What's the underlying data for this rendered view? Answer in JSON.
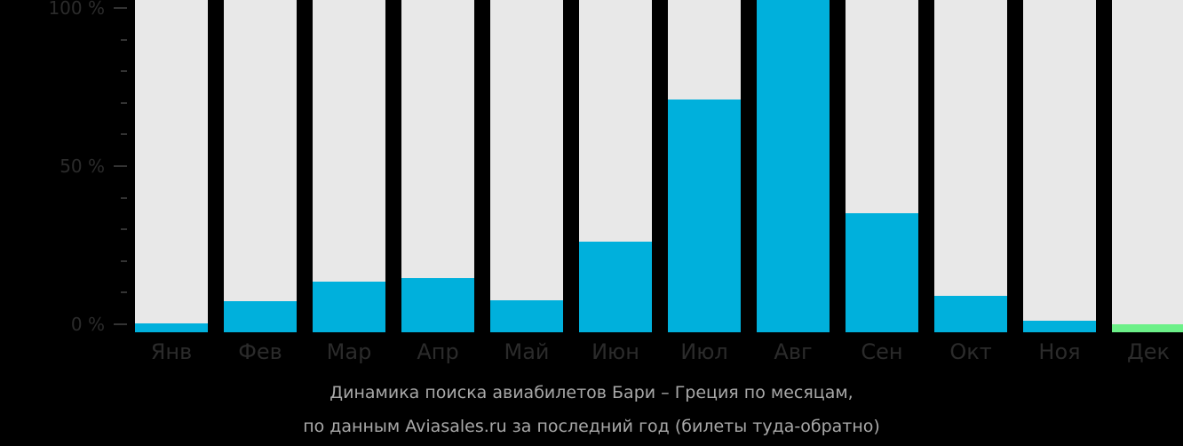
{
  "chart_data": {
    "type": "bar",
    "title": "Динамика поиска авиабилетов Бари – Греция по месяцам,",
    "subtitle": "по данным Aviasales.ru за последний год (билеты туда-обратно)",
    "xlabel": "",
    "ylabel": "",
    "ylim": [
      0,
      100
    ],
    "yticks": [
      "0 %",
      "50 %",
      "100 %"
    ],
    "grid": false,
    "legend": null,
    "categories": [
      "Янв",
      "Фев",
      "Мар",
      "Апр",
      "Май",
      "Июн",
      "Июл",
      "Авг",
      "Сен",
      "Окт",
      "Ноя",
      "Дек"
    ],
    "values": [
      2.7,
      9.4,
      15.2,
      16.3,
      9.6,
      27.3,
      70.1,
      100,
      35.8,
      11.0,
      3.5,
      2.4
    ],
    "highlight_index": 11,
    "colors": {
      "bar": "#00b0dc",
      "highlight": "#6cf088",
      "track": "#e8e8e8",
      "background": "#000000"
    }
  }
}
